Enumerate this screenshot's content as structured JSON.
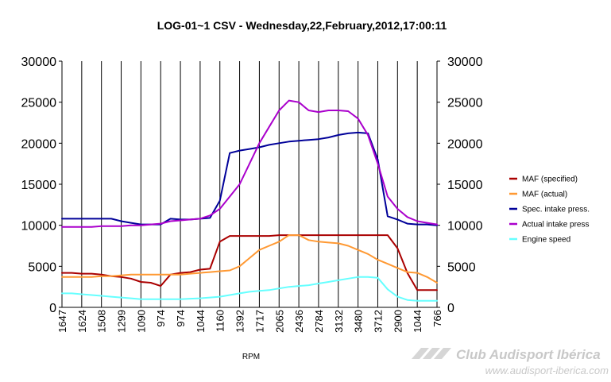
{
  "chart_data": {
    "type": "line",
    "title": "LOG-01~1 CSV - Wednesday,22,February,2012,17:00:11",
    "xlabel": "RPM",
    "ylabel": "",
    "ylim": [
      0,
      30000
    ],
    "y_ticks": [
      0,
      5000,
      10000,
      15000,
      20000,
      25000,
      30000
    ],
    "x_ticks": [
      "1647",
      "1624",
      "1508",
      "1299",
      "1090",
      "974",
      "974",
      "1044",
      "1160",
      "1392",
      "1717",
      "2065",
      "2436",
      "2784",
      "3132",
      "3480",
      "3712",
      "2900",
      "1044",
      "766"
    ],
    "x_tick_positions": [
      0,
      2,
      4,
      6,
      8,
      10,
      12,
      14,
      16,
      18,
      20,
      22,
      24,
      26,
      28,
      30,
      32,
      34,
      36,
      38
    ],
    "x_count": 39,
    "grid": "vertical",
    "legend_position": "right",
    "series": [
      {
        "name": "MAF (specified)",
        "color": "#aa0000",
        "values": [
          4200,
          4200,
          4100,
          4100,
          4000,
          3800,
          3700,
          3500,
          3100,
          3000,
          2600,
          4000,
          4200,
          4300,
          4600,
          4700,
          8000,
          8700,
          8700,
          8700,
          8700,
          8700,
          8800,
          8800,
          8800,
          8800,
          8800,
          8800,
          8800,
          8800,
          8800,
          8800,
          8800,
          8800,
          7200,
          4200,
          2100,
          2100,
          2100
        ]
      },
      {
        "name": "MAF (actual)",
        "color": "#ff9933",
        "values": [
          3700,
          3700,
          3700,
          3700,
          3800,
          3800,
          3900,
          4000,
          4000,
          4000,
          4000,
          4000,
          4000,
          4100,
          4200,
          4300,
          4400,
          4500,
          5000,
          6000,
          7000,
          7500,
          8000,
          8800,
          8800,
          8200,
          8000,
          7900,
          7800,
          7500,
          7000,
          6500,
          5800,
          5300,
          4800,
          4300,
          4200,
          3700,
          3000
        ]
      },
      {
        "name": "Spec. intake press.",
        "color": "#000099",
        "values": [
          10800,
          10800,
          10800,
          10800,
          10800,
          10800,
          10500,
          10300,
          10100,
          10100,
          10100,
          10800,
          10700,
          10700,
          10800,
          10900,
          13000,
          18800,
          19100,
          19300,
          19500,
          19800,
          20000,
          20200,
          20300,
          20400,
          20500,
          20700,
          21000,
          21200,
          21300,
          21200,
          18000,
          11100,
          10700,
          10200,
          10100,
          10100,
          10000
        ]
      },
      {
        "name": "Actual intake press",
        "color": "#aa00cc",
        "values": [
          9800,
          9800,
          9800,
          9800,
          9900,
          9900,
          9900,
          10000,
          10000,
          10100,
          10200,
          10500,
          10600,
          10700,
          10800,
          11200,
          12000,
          13500,
          15000,
          17500,
          20000,
          22000,
          24000,
          25200,
          25000,
          24000,
          23800,
          24000,
          24000,
          23900,
          23000,
          21000,
          17500,
          13500,
          12000,
          11000,
          10500,
          10300,
          10100
        ]
      },
      {
        "name": "Engine speed",
        "color": "#66ffff",
        "values": [
          1700,
          1700,
          1600,
          1500,
          1400,
          1300,
          1200,
          1100,
          1000,
          1000,
          1000,
          1000,
          1000,
          1050,
          1100,
          1200,
          1300,
          1500,
          1700,
          1900,
          2000,
          2100,
          2300,
          2500,
          2600,
          2700,
          2900,
          3100,
          3300,
          3500,
          3700,
          3700,
          3600,
          2200,
          1300,
          900,
          800,
          800,
          800
        ]
      }
    ]
  },
  "watermark": {
    "name": "Club Audisport Ibérica",
    "url": "www.audisport-iberica.com"
  }
}
